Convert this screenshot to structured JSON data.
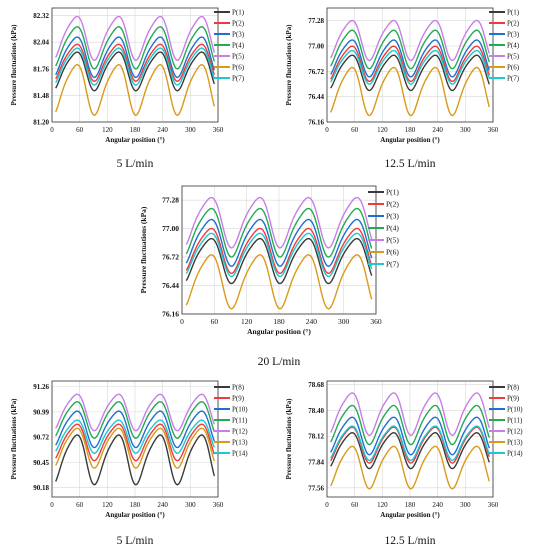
{
  "colors": {
    "set1": [
      "#3a3a3a",
      "#ee3b3b",
      "#1f6fd0",
      "#22aa55",
      "#c77ee8",
      "#d99a1a",
      "#1ec8d0"
    ],
    "set2": [
      "#3a3a3a",
      "#ee3b3b",
      "#1f6fd0",
      "#22aa55",
      "#c77ee8",
      "#d99a1a",
      "#1ec8d0"
    ]
  },
  "chart_data": [
    {
      "type": "line",
      "caption": "5 L/min",
      "xlabel": "Angular position (°)",
      "ylabel": "Pressure fluctuations (kPa)",
      "xlim": [
        0,
        360
      ],
      "ylim": [
        81.2,
        82.4
      ],
      "xticks": [
        "0",
        "60",
        "120",
        "180",
        "240",
        "300",
        "360"
      ],
      "yticks": [
        "81.20",
        "81.48",
        "81.76",
        "82.04",
        "82.32"
      ],
      "grid": true,
      "legend_position": "top-right",
      "series": [
        {
          "name": "P(1)",
          "mean": 81.75,
          "amplitude": 0.23
        },
        {
          "name": "P(2)",
          "mean": 81.84,
          "amplitude": 0.22
        },
        {
          "name": "P(3)",
          "mean": 81.9,
          "amplitude": 0.24
        },
        {
          "name": "P(4)",
          "mean": 82.0,
          "amplitude": 0.25
        },
        {
          "name": "P(5)",
          "mean": 82.1,
          "amplitude": 0.26
        },
        {
          "name": "P(6)",
          "mean": 81.56,
          "amplitude": 0.3
        },
        {
          "name": "P(7)",
          "mean": 81.8,
          "amplitude": 0.22
        }
      ]
    },
    {
      "type": "line",
      "caption": "12.5 L/min",
      "xlabel": "Angular position (°)",
      "ylabel": "Pressure fluctuations (kPa)",
      "xlim": [
        0,
        360
      ],
      "ylim": [
        76.16,
        77.42
      ],
      "xticks": [
        "0",
        "60",
        "120",
        "180",
        "240",
        "300",
        "360"
      ],
      "yticks": [
        "76.16",
        "76.44",
        "76.72",
        "77.00",
        "77.28"
      ],
      "grid": true,
      "legend_position": "top-right",
      "series": [
        {
          "name": "P(1)",
          "mean": 76.72,
          "amplitude": 0.22
        },
        {
          "name": "P(2)",
          "mean": 76.82,
          "amplitude": 0.22
        },
        {
          "name": "P(3)",
          "mean": 76.88,
          "amplitude": 0.23
        },
        {
          "name": "P(4)",
          "mean": 76.98,
          "amplitude": 0.24
        },
        {
          "name": "P(5)",
          "mean": 77.08,
          "amplitude": 0.25
        },
        {
          "name": "P(6)",
          "mean": 76.52,
          "amplitude": 0.3
        },
        {
          "name": "P(7)",
          "mean": 76.78,
          "amplitude": 0.21
        }
      ]
    },
    {
      "type": "line",
      "caption": "20 L/min",
      "xlabel": "Angular position (°)",
      "ylabel": "Pressure fluctuations (kPa)",
      "xlim": [
        0,
        360
      ],
      "ylim": [
        76.16,
        77.42
      ],
      "xticks": [
        "0",
        "60",
        "120",
        "180",
        "240",
        "300",
        "360"
      ],
      "yticks": [
        "76.16",
        "76.44",
        "76.72",
        "77.00",
        "77.28"
      ],
      "grid": true,
      "legend_position": "top-right",
      "series": [
        {
          "name": "P(1)",
          "mean": 76.7,
          "amplitude": 0.25
        },
        {
          "name": "P(2)",
          "mean": 76.8,
          "amplitude": 0.25
        },
        {
          "name": "P(3)",
          "mean": 76.88,
          "amplitude": 0.26
        },
        {
          "name": "P(4)",
          "mean": 76.98,
          "amplitude": 0.27
        },
        {
          "name": "P(5)",
          "mean": 77.08,
          "amplitude": 0.28
        },
        {
          "name": "P(6)",
          "mean": 76.5,
          "amplitude": 0.3
        },
        {
          "name": "P(7)",
          "mean": 76.76,
          "amplitude": 0.24
        }
      ]
    },
    {
      "type": "line",
      "caption": "5 L/min",
      "xlabel": "Angular position (°)",
      "ylabel": "Pressure fluctuations (kPa)",
      "xlim": [
        0,
        360
      ],
      "ylim": [
        90.08,
        91.32
      ],
      "xticks": [
        "0",
        "60",
        "120",
        "180",
        "240",
        "300",
        "360"
      ],
      "yticks": [
        "90.18",
        "90.45",
        "90.72",
        "90.99",
        "91.26"
      ],
      "grid": true,
      "legend_position": "top-right",
      "series": [
        {
          "name": "P(8)",
          "mean": 90.5,
          "amplitude": 0.3
        },
        {
          "name": "P(9)",
          "mean": 90.68,
          "amplitude": 0.22
        },
        {
          "name": "P(10)",
          "mean": 90.82,
          "amplitude": 0.22
        },
        {
          "name": "P(11)",
          "mean": 90.92,
          "amplitude": 0.22
        },
        {
          "name": "P(12)",
          "mean": 91.0,
          "amplitude": 0.22
        },
        {
          "name": "P(13)",
          "mean": 90.62,
          "amplitude": 0.24
        },
        {
          "name": "P(14)",
          "mean": 90.74,
          "amplitude": 0.2
        }
      ]
    },
    {
      "type": "line",
      "caption": "12.5 L/min",
      "xlabel": "Angular position (°)",
      "ylabel": "Pressure fluctuations (kPa)",
      "xlim": [
        0,
        360
      ],
      "ylim": [
        77.46,
        78.72
      ],
      "xticks": [
        "0",
        "60",
        "120",
        "180",
        "240",
        "300",
        "360"
      ],
      "yticks": [
        "77.56",
        "77.84",
        "78.12",
        "78.40",
        "78.68"
      ],
      "grid": true,
      "legend_position": "top-right",
      "series": [
        {
          "name": "P(8)",
          "mean": 77.98,
          "amplitude": 0.22
        },
        {
          "name": "P(9)",
          "mean": 78.04,
          "amplitude": 0.22
        },
        {
          "name": "P(10)",
          "mean": 78.14,
          "amplitude": 0.23
        },
        {
          "name": "P(11)",
          "mean": 78.26,
          "amplitude": 0.24
        },
        {
          "name": "P(12)",
          "mean": 78.38,
          "amplitude": 0.26
        },
        {
          "name": "P(13)",
          "mean": 77.8,
          "amplitude": 0.26
        },
        {
          "name": "P(14)",
          "mean": 78.06,
          "amplitude": 0.21
        }
      ]
    }
  ]
}
